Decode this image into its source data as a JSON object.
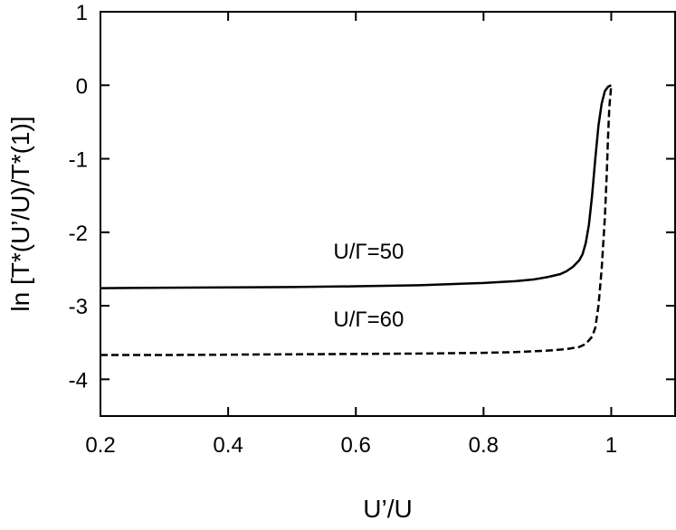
{
  "chart_data": {
    "type": "line",
    "xlabel": "U’/U",
    "ylabel": "ln [T*(U’/U)/T*(1)]",
    "xlim": [
      0.2,
      1.1
    ],
    "ylim": [
      -4.5,
      1
    ],
    "xticks": [
      0.2,
      0.4,
      0.6,
      0.8,
      1
    ],
    "xtick_labels": [
      "0.2",
      "0.4",
      "0.6",
      "0.8",
      "1"
    ],
    "yticks": [
      -4,
      -3,
      -2,
      -1,
      0,
      1
    ],
    "ytick_labels": [
      "-4",
      "-3",
      "-2",
      "-1",
      "0",
      "1"
    ],
    "grid": false,
    "series": [
      {
        "name": "U/Γ=50",
        "style": "solid",
        "color": "#000000",
        "x": [
          0.2,
          0.3,
          0.4,
          0.5,
          0.6,
          0.7,
          0.8,
          0.85,
          0.88,
          0.9,
          0.92,
          0.93,
          0.94,
          0.95,
          0.955,
          0.96,
          0.965,
          0.97,
          0.975,
          0.98,
          0.985,
          0.99,
          0.995,
          1.0
        ],
        "y": [
          -2.76,
          -2.755,
          -2.75,
          -2.745,
          -2.735,
          -2.72,
          -2.69,
          -2.665,
          -2.64,
          -2.61,
          -2.57,
          -2.53,
          -2.47,
          -2.38,
          -2.3,
          -2.15,
          -1.9,
          -1.5,
          -1.0,
          -0.55,
          -0.25,
          -0.08,
          -0.02,
          0.0
        ]
      },
      {
        "name": "U/Γ=60",
        "style": "dashed",
        "color": "#000000",
        "x": [
          0.2,
          0.3,
          0.4,
          0.5,
          0.6,
          0.7,
          0.8,
          0.85,
          0.9,
          0.93,
          0.95,
          0.96,
          0.97,
          0.975,
          0.98,
          0.985,
          0.99,
          0.993,
          0.995,
          0.997,
          1.0
        ],
        "y": [
          -3.67,
          -3.67,
          -3.665,
          -3.66,
          -3.655,
          -3.65,
          -3.64,
          -3.63,
          -3.61,
          -3.59,
          -3.56,
          -3.52,
          -3.42,
          -3.3,
          -3.0,
          -2.5,
          -1.8,
          -1.2,
          -0.7,
          -0.3,
          0.0
        ]
      }
    ],
    "annotations": [
      {
        "text": "U/Γ=50",
        "x": 0.62,
        "y": -2.36
      },
      {
        "text": "U/Γ=60",
        "x": 0.62,
        "y": -3.28
      }
    ]
  }
}
